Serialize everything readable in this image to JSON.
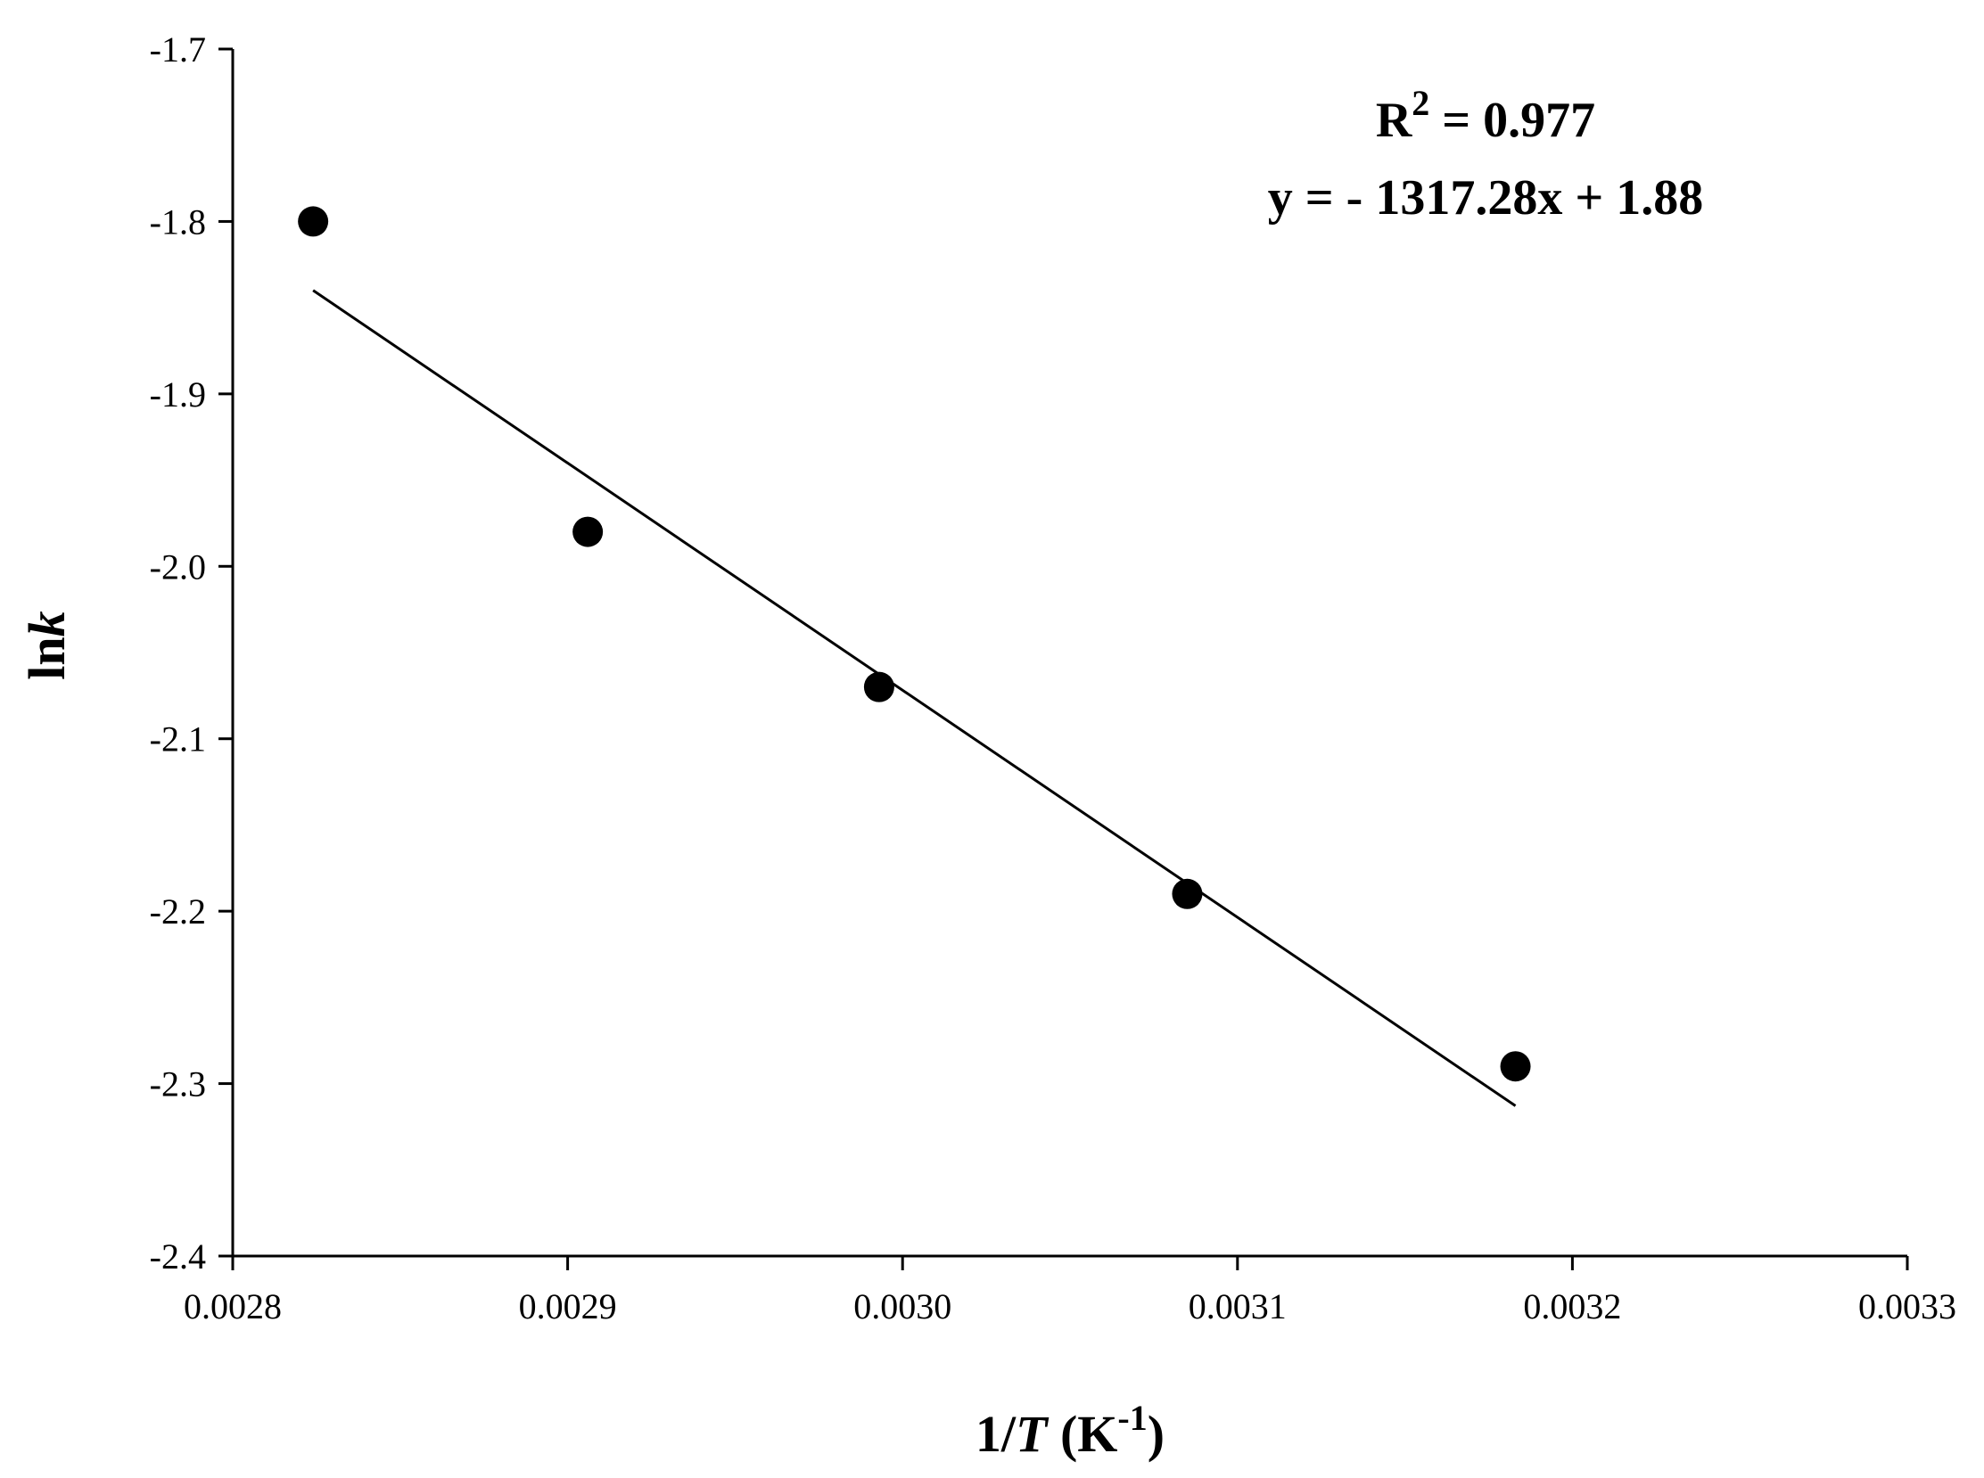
{
  "chart_data": {
    "type": "scatter",
    "xlabel": {
      "prefix": "1/",
      "italic": "T",
      "unit_open": " (K",
      "unit_sup": "-1",
      "unit_close": ")"
    },
    "ylabel": {
      "plain": "ln",
      "italic": "k"
    },
    "xlim": [
      0.0028,
      0.0033
    ],
    "ylim": [
      -2.4,
      -1.7
    ],
    "x_ticks": [
      0.0028,
      0.0029,
      0.003,
      0.0031,
      0.0032,
      0.0033
    ],
    "x_tick_labels": [
      "0.0028",
      "0.0029",
      "0.0030",
      "0.0031",
      "0.0032",
      "0.0033"
    ],
    "y_ticks": [
      -1.7,
      -1.8,
      -1.9,
      -2.0,
      -2.1,
      -2.2,
      -2.3,
      -2.4
    ],
    "y_tick_labels": [
      "-1.7",
      "-1.8",
      "-1.9",
      "-2.0",
      "-2.1",
      "-2.2",
      "-2.3",
      "-2.4"
    ],
    "grid": false,
    "points": [
      {
        "x": 0.002824,
        "y": -1.8
      },
      {
        "x": 0.002906,
        "y": -1.98
      },
      {
        "x": 0.002993,
        "y": -2.07
      },
      {
        "x": 0.003085,
        "y": -2.19
      },
      {
        "x": 0.003183,
        "y": -2.29
      }
    ],
    "fit_line": {
      "slope": -1317.28,
      "intercept": 1.88,
      "x_range": [
        0.002824,
        0.003183
      ]
    },
    "annotations": {
      "r2_base": "R",
      "r2_sup": "2",
      "r2_value": " = 0.977",
      "equation": "y = - 1317.28x + 1.88"
    },
    "colors": {
      "marker": "#000000",
      "line": "#000000",
      "axis": "#000000"
    }
  }
}
